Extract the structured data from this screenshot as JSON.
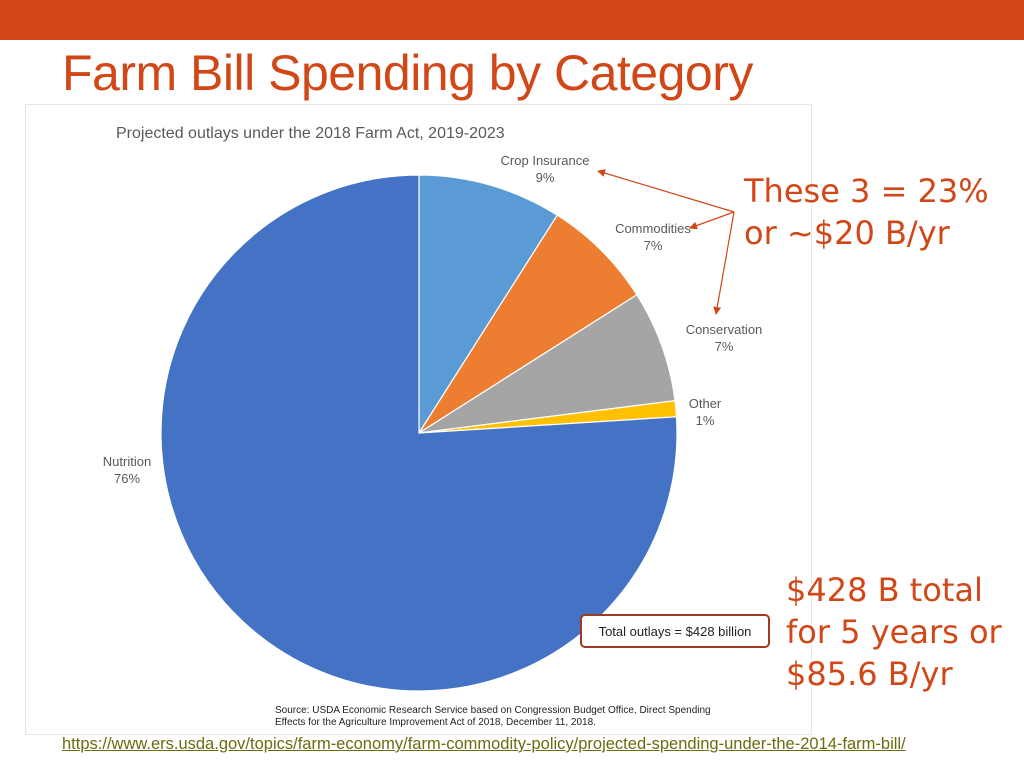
{
  "slide": {
    "title": "Farm Bill Spending by Category",
    "callout_top": [
      "These 3 = 23%",
      "or ~$20 B/yr"
    ],
    "callout_bottom": [
      "$428 B total",
      "for 5 years or",
      "$85.6 B/yr"
    ],
    "link": "https://www.ers.usda.gov/topics/farm-economy/farm-commodity-policy/projected-spending-under-the-2014-farm-bill/"
  },
  "colors": {
    "accent": "#d24717",
    "crop_insurance": "#5b9bd5",
    "commodities": "#ed7d31",
    "conservation": "#a5a5a5",
    "other": "#ffc000",
    "nutrition": "#4472c4",
    "total_box_border": "#a33a1f"
  },
  "chart_data": {
    "type": "pie",
    "title": "Projected outlays under the 2018 Farm Act, 2019-2023",
    "slices": [
      {
        "label": "Crop Insurance",
        "value": 9,
        "display": "9%",
        "color": "#5b9bd5"
      },
      {
        "label": "Commodities",
        "value": 7,
        "display": "7%",
        "color": "#ed7d31"
      },
      {
        "label": "Conservation",
        "value": 7,
        "display": "7%",
        "color": "#a5a5a5"
      },
      {
        "label": "Other",
        "value": 1,
        "display": "1%",
        "color": "#ffc000"
      },
      {
        "label": "Nutrition",
        "value": 76,
        "display": "76%",
        "color": "#4472c4"
      }
    ],
    "start_angle": "12 o'clock",
    "direction": "clockwise",
    "annotation": "Total outlays = $428 billion",
    "source": [
      "Source: USDA Economic Research Service based on Congression Budget Office, Direct Spending",
      "Effects for the Agriculture Improvement Act of 2018, December 11, 2018."
    ]
  }
}
